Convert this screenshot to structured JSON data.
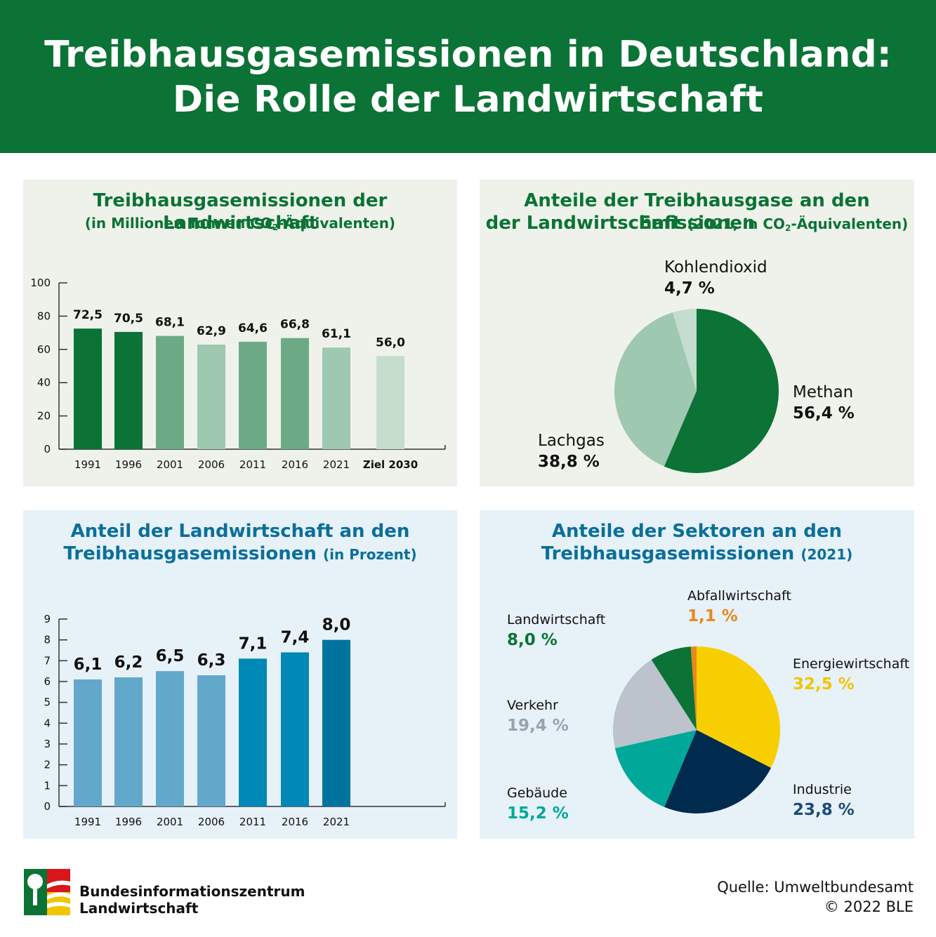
{
  "header": {
    "line1": "Treibhausgasemissionen in Deutschland:",
    "line2": "Die Rolle der Landwirtschaft"
  },
  "panel1": {
    "title": "Treibhausgasemissionen der Landwirtschaft",
    "subtitle_pre": "(in Millionen Tonnen CO",
    "subtitle_sub": "2",
    "subtitle_post": "-Äquivalenten)"
  },
  "panel2": {
    "title_line1": "Anteile der Treibhausgase an den Emissionen",
    "title_line2": "der Landwirtschaft",
    "title_small_pre": "(2021, in CO",
    "title_small_sub": "2",
    "title_small_post": "-Äquivalenten)"
  },
  "panel3": {
    "title_line1": "Anteil der Landwirtschaft an den",
    "title_line2": "Treibhausgasemissionen",
    "title_small": "(in Prozent)"
  },
  "panel4": {
    "title_line1": "Anteile der Sektoren an den",
    "title_line2": "Treibhausgasemissionen",
    "title_small": "(2021)"
  },
  "chart_data": [
    {
      "type": "bar",
      "categories": [
        "1991",
        "1996",
        "2001",
        "2006",
        "2011",
        "2016",
        "2021",
        "Ziel 2030"
      ],
      "values": [
        72.5,
        70.5,
        68.1,
        62.9,
        64.6,
        66.8,
        61.1,
        56.0
      ],
      "value_labels": [
        "72,5",
        "70,5",
        "68,1",
        "62,9",
        "64,6",
        "66,8",
        "61,1",
        "56,0"
      ],
      "colors": [
        "#0b7335",
        "#0b7335",
        "#6caa85",
        "#9fc8b0",
        "#6caa85",
        "#6caa85",
        "#9fc8b0",
        "#c4ddcd"
      ],
      "yticks": [
        "0",
        "20",
        "40",
        "60",
        "80",
        "100"
      ],
      "ylim": [
        0,
        100
      ],
      "grid": false
    },
    {
      "type": "pie",
      "labels": [
        "Methan",
        "Lachgas",
        "Kohlendioxid"
      ],
      "values": [
        56.4,
        38.8,
        4.7
      ],
      "value_labels": [
        "56,4 %",
        "38,8 %",
        "4,7 %"
      ],
      "colors": [
        "#0b7335",
        "#9fc8b0",
        "#c4ddcd"
      ]
    },
    {
      "type": "bar",
      "categories": [
        "1991",
        "1996",
        "2001",
        "2006",
        "2011",
        "2016",
        "2021"
      ],
      "values": [
        6.1,
        6.2,
        6.5,
        6.3,
        7.1,
        7.4,
        8.0
      ],
      "value_labels": [
        "6,1",
        "6,2",
        "6,5",
        "6,3",
        "7,1",
        "7,4",
        "8,0"
      ],
      "colors": [
        "#62a8cb",
        "#62a8cb",
        "#62a8cb",
        "#62a8cb",
        "#0089b6",
        "#0089b6",
        "#00739e"
      ],
      "yticks": [
        "0",
        "1",
        "2",
        "3",
        "4",
        "5",
        "6",
        "7",
        "8",
        "9"
      ],
      "ylim": [
        0,
        9
      ],
      "grid": false
    },
    {
      "type": "pie",
      "labels": [
        "Energiewirtschaft",
        "Industrie",
        "Gebäude",
        "Verkehr",
        "Landwirtschaft",
        "Abfallwirtschaft"
      ],
      "values": [
        32.5,
        23.8,
        15.2,
        19.4,
        8.0,
        1.1
      ],
      "value_labels": [
        "32,5 %",
        "23,8 %",
        "15,2 %",
        "19,4 %",
        "8,0 %",
        "1,1 %"
      ],
      "colors": [
        "#f7cf00",
        "#002a4e",
        "#00a89a",
        "#bcc3cc",
        "#0b7335",
        "#e9871d"
      ]
    }
  ],
  "footer": {
    "org_line1": "Bundesinformationszentrum",
    "org_line2": "Landwirtschaft",
    "source": "Quelle: Umweltbundesamt",
    "copyright": "© 2022 BLE"
  }
}
